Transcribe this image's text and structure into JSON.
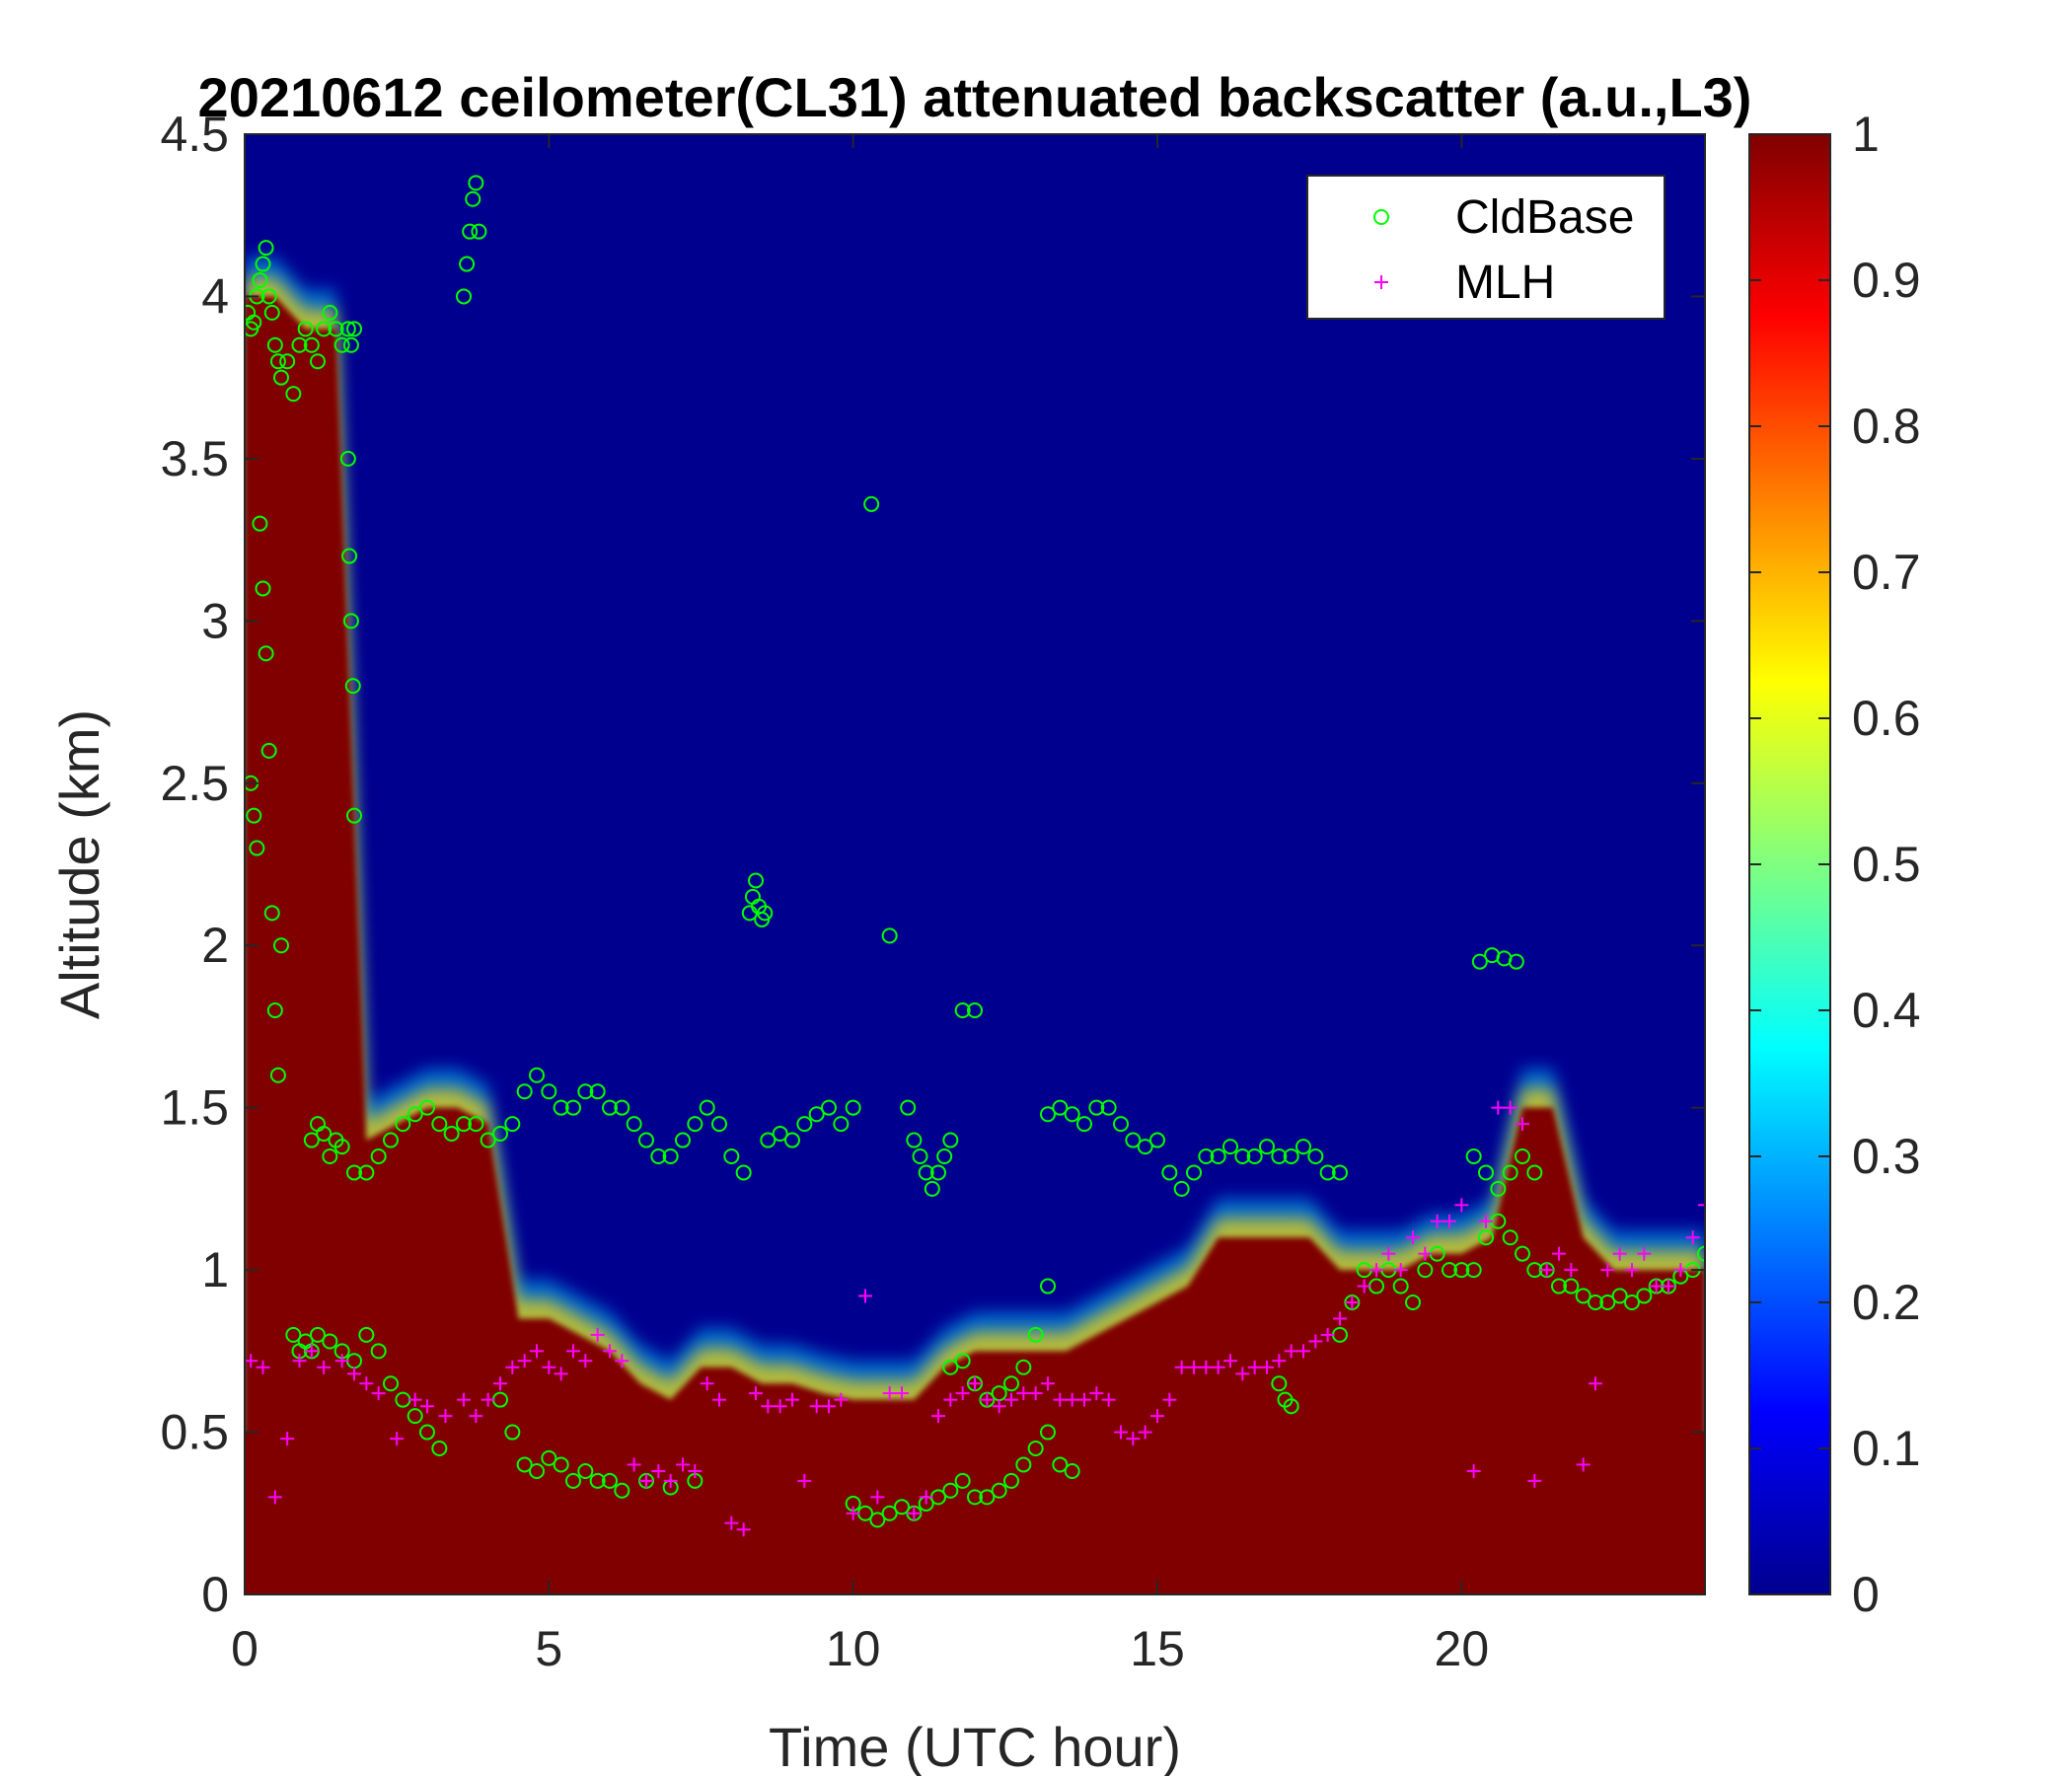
{
  "chart_data": {
    "type": "heatmap",
    "title": "20210612 ceilometer(CL31) attenuated backscatter (a.u.,L3)",
    "xlabel": "Time (UTC hour)",
    "ylabel": "Altitude (km)",
    "xlim": [
      0,
      24
    ],
    "ylim": [
      0,
      4.5
    ],
    "xticks": [
      0,
      5,
      10,
      15,
      20
    ],
    "xtick_labels": [
      "0",
      "5",
      "10",
      "15",
      "20"
    ],
    "yticks": [
      0,
      0.5,
      1,
      1.5,
      2,
      2.5,
      3,
      3.5,
      4,
      4.5
    ],
    "ytick_labels": [
      "0",
      "0.5",
      "1",
      "1.5",
      "2",
      "2.5",
      "3",
      "3.5",
      "4",
      "4.5"
    ],
    "colorbar": {
      "colormap": "jet",
      "range": [
        0,
        1
      ],
      "ticks": [
        0,
        0.1,
        0.2,
        0.3,
        0.4,
        0.5,
        0.6,
        0.7,
        0.8,
        0.9,
        1
      ],
      "tick_labels": [
        "0",
        "0.1",
        "0.2",
        "0.3",
        "0.4",
        "0.5",
        "0.6",
        "0.7",
        "0.8",
        "0.9",
        "1"
      ],
      "location": "right"
    },
    "legend": {
      "location": "top-right",
      "entries": [
        {
          "name": "CldBase",
          "marker": "circle",
          "color": "#00ff00"
        },
        {
          "name": "MLH",
          "marker": "plus",
          "color": "#ff00ff"
        }
      ]
    },
    "background_color": "#00008f",
    "saturated_color": "#800000",
    "layer_profile": {
      "note_free": true,
      "x": [
        0,
        0.5,
        1,
        1.5,
        2,
        2.5,
        3,
        3.5,
        4,
        4.5,
        5,
        5.5,
        6,
        6.5,
        7,
        7.5,
        8,
        8.5,
        9,
        9.5,
        10,
        10.5,
        11,
        11.5,
        12,
        12.5,
        13,
        13.5,
        14,
        14.5,
        15,
        15.5,
        16,
        16.5,
        17,
        17.5,
        18,
        18.5,
        19,
        19.5,
        20,
        20.5,
        21,
        21.5,
        22,
        22.5,
        23,
        23.5,
        24
      ],
      "dense_top": [
        4.0,
        4.0,
        3.9,
        3.9,
        1.4,
        1.45,
        1.5,
        1.5,
        1.45,
        0.85,
        0.85,
        0.8,
        0.75,
        0.65,
        0.6,
        0.7,
        0.7,
        0.65,
        0.65,
        0.62,
        0.6,
        0.6,
        0.6,
        0.7,
        0.75,
        0.75,
        0.75,
        0.75,
        0.8,
        0.85,
        0.9,
        0.95,
        1.1,
        1.1,
        1.1,
        1.1,
        1.0,
        1.0,
        1.0,
        1.05,
        1.05,
        1.1,
        1.5,
        1.5,
        1.1,
        1.0,
        1.0,
        1.0,
        1.0
      ]
    },
    "series": [
      {
        "name": "CldBase",
        "marker": "circle",
        "color": "#00ff00",
        "x": [
          0.05,
          0.1,
          0.15,
          0.2,
          0.25,
          0.3,
          0.35,
          0.4,
          0.45,
          0.5,
          0.55,
          0.6,
          0.7,
          0.8,
          0.9,
          1.0,
          1.1,
          1.2,
          1.3,
          1.4,
          1.5,
          1.6,
          1.7,
          1.75,
          1.8,
          0.1,
          0.15,
          0.2,
          0.25,
          0.3,
          0.35,
          0.4,
          0.45,
          0.5,
          0.55,
          0.6,
          1.7,
          1.72,
          1.75,
          1.78,
          1.8,
          0.8,
          0.9,
          1.0,
          1.1,
          1.2,
          1.4,
          1.6,
          1.8,
          2.0,
          2.2,
          2.4,
          2.6,
          2.8,
          3.0,
          3.2,
          1.1,
          1.2,
          1.3,
          1.4,
          1.5,
          1.6,
          1.8,
          2.0,
          2.2,
          2.4,
          2.6,
          2.8,
          3.0,
          3.2,
          3.4,
          3.6,
          3.8,
          4.0,
          4.2,
          4.4,
          4.6,
          4.8,
          5.0,
          5.2,
          5.4,
          5.6,
          5.8,
          6.0,
          6.2,
          6.4,
          6.6,
          6.8,
          7.0,
          7.2,
          7.4,
          7.6,
          7.8,
          8.0,
          8.2,
          8.6,
          8.8,
          9.0,
          9.2,
          9.4,
          9.6,
          9.8,
          10.0,
          3.6,
          3.65,
          3.7,
          3.75,
          3.8,
          3.85,
          8.3,
          8.35,
          8.4,
          8.45,
          8.5,
          8.55,
          10.3,
          10.6,
          10.9,
          11.0,
          11.1,
          11.2,
          11.3,
          11.4,
          11.5,
          11.6,
          11.8,
          12.0,
          10.0,
          10.2,
          10.4,
          10.6,
          10.8,
          11.0,
          11.2,
          11.4,
          11.6,
          11.8,
          12.0,
          12.2,
          12.4,
          12.6,
          12.8,
          13.0,
          13.2,
          13.4,
          13.6,
          11.6,
          11.8,
          12.0,
          12.2,
          12.4,
          12.6,
          12.8,
          13.0,
          13.2,
          13.2,
          13.4,
          13.6,
          13.8,
          14.0,
          14.2,
          14.4,
          14.6,
          14.8,
          15.0,
          15.2,
          15.4,
          15.6,
          15.8,
          16.0,
          16.2,
          16.4,
          16.6,
          16.8,
          17.0,
          17.2,
          17.4,
          17.6,
          17.8,
          18.0,
          17.0,
          17.1,
          17.2,
          18.0,
          18.2,
          18.4,
          18.6,
          18.8,
          19.0,
          19.2,
          19.4,
          19.6,
          19.8,
          20.0,
          20.2,
          20.4,
          20.6,
          20.8,
          21.0,
          21.2,
          21.4,
          21.6,
          21.8,
          22.0,
          22.2,
          22.4,
          22.6,
          22.8,
          23.0,
          23.2,
          23.4,
          23.6,
          23.8,
          24.0,
          20.2,
          20.4,
          20.6,
          20.8,
          21.0,
          21.2,
          20.3,
          20.5,
          20.7,
          20.9,
          4.2,
          4.4,
          4.6,
          4.8,
          5.0,
          5.2,
          5.4,
          5.6,
          5.8,
          6.0,
          6.2,
          6.6,
          7.0,
          7.4
        ],
        "y": [
          3.95,
          3.9,
          3.92,
          4.0,
          4.05,
          4.1,
          4.15,
          4.0,
          3.95,
          3.85,
          3.8,
          3.75,
          3.8,
          3.7,
          3.85,
          3.9,
          3.85,
          3.8,
          3.9,
          3.95,
          3.9,
          3.85,
          3.9,
          3.85,
          3.9,
          2.5,
          2.4,
          2.3,
          3.3,
          3.1,
          2.9,
          2.6,
          2.1,
          1.8,
          1.6,
          2.0,
          3.5,
          3.2,
          3.0,
          2.8,
          2.4,
          0.8,
          0.75,
          0.78,
          0.75,
          0.8,
          0.78,
          0.75,
          0.72,
          0.8,
          0.75,
          0.65,
          0.6,
          0.55,
          0.5,
          0.45,
          1.4,
          1.45,
          1.42,
          1.35,
          1.4,
          1.38,
          1.3,
          1.3,
          1.35,
          1.4,
          1.45,
          1.48,
          1.5,
          1.45,
          1.42,
          1.45,
          1.45,
          1.4,
          1.42,
          1.45,
          1.55,
          1.6,
          1.55,
          1.5,
          1.5,
          1.55,
          1.55,
          1.5,
          1.5,
          1.45,
          1.4,
          1.35,
          1.35,
          1.4,
          1.45,
          1.5,
          1.45,
          1.35,
          1.3,
          1.4,
          1.42,
          1.4,
          1.45,
          1.48,
          1.5,
          1.45,
          1.5,
          4.0,
          4.1,
          4.2,
          4.3,
          4.35,
          4.2,
          2.1,
          2.15,
          2.2,
          2.12,
          2.08,
          2.1,
          3.36,
          2.03,
          1.5,
          1.4,
          1.35,
          1.3,
          1.25,
          1.3,
          1.35,
          1.4,
          1.8,
          1.8,
          0.28,
          0.25,
          0.23,
          0.25,
          0.27,
          0.25,
          0.28,
          0.3,
          0.32,
          0.35,
          0.3,
          0.3,
          0.32,
          0.35,
          0.4,
          0.45,
          0.5,
          0.4,
          0.38,
          0.7,
          0.72,
          0.65,
          0.6,
          0.62,
          0.65,
          0.7,
          0.8,
          0.95,
          1.48,
          1.5,
          1.48,
          1.45,
          1.5,
          1.5,
          1.45,
          1.4,
          1.38,
          1.4,
          1.3,
          1.25,
          1.3,
          1.35,
          1.35,
          1.38,
          1.35,
          1.35,
          1.38,
          1.35,
          1.35,
          1.38,
          1.35,
          1.3,
          1.3,
          0.65,
          0.6,
          0.58,
          0.8,
          0.9,
          1.0,
          0.95,
          1.0,
          0.95,
          0.9,
          1.0,
          1.05,
          1.0,
          1.0,
          1.0,
          1.1,
          1.15,
          1.1,
          1.05,
          1.0,
          1.0,
          0.95,
          0.95,
          0.92,
          0.9,
          0.9,
          0.92,
          0.9,
          0.92,
          0.95,
          0.95,
          0.98,
          1.0,
          1.05,
          1.35,
          1.3,
          1.25,
          1.3,
          1.35,
          1.3,
          1.95,
          1.97,
          1.96,
          1.95,
          0.6,
          0.5,
          0.4,
          0.38,
          0.42,
          0.4,
          0.35,
          0.38,
          0.35,
          0.35,
          0.32,
          0.35,
          0.33,
          0.35
        ]
      },
      {
        "name": "MLH",
        "marker": "plus",
        "color": "#ff00ff",
        "x": [
          0.1,
          0.3,
          0.5,
          0.7,
          0.9,
          1.1,
          1.3,
          1.6,
          1.8,
          2.0,
          2.2,
          2.5,
          2.8,
          3.0,
          3.3,
          3.6,
          3.8,
          4.0,
          4.2,
          4.4,
          4.6,
          4.8,
          5.0,
          5.2,
          5.4,
          5.6,
          5.8,
          6.0,
          6.2,
          6.4,
          6.6,
          6.8,
          7.0,
          7.2,
          7.4,
          7.6,
          7.8,
          8.0,
          8.2,
          8.4,
          8.6,
          8.8,
          9.0,
          9.2,
          9.4,
          9.6,
          9.8,
          10.0,
          10.2,
          10.4,
          10.6,
          10.8,
          11.0,
          11.2,
          11.4,
          11.6,
          11.8,
          12.0,
          12.2,
          12.4,
          12.6,
          12.8,
          13.0,
          13.2,
          13.4,
          13.6,
          13.8,
          14.0,
          14.2,
          14.4,
          14.6,
          14.8,
          15.0,
          15.2,
          15.4,
          15.6,
          15.8,
          16.0,
          16.2,
          16.4,
          16.6,
          16.8,
          17.0,
          17.2,
          17.4,
          17.6,
          17.8,
          18.0,
          18.2,
          18.4,
          18.6,
          18.8,
          19.0,
          19.2,
          19.4,
          19.6,
          19.8,
          20.0,
          20.2,
          20.4,
          20.6,
          20.8,
          21.0,
          21.2,
          21.4,
          21.6,
          21.8,
          22.0,
          22.2,
          22.4,
          22.6,
          22.8,
          23.0,
          23.2,
          23.4,
          23.6,
          23.8,
          24.0
        ],
        "y": [
          0.72,
          0.7,
          0.3,
          0.48,
          0.72,
          0.75,
          0.7,
          0.72,
          0.68,
          0.65,
          0.62,
          0.48,
          0.6,
          0.58,
          0.55,
          0.6,
          0.55,
          0.6,
          0.65,
          0.7,
          0.72,
          0.75,
          0.7,
          0.68,
          0.75,
          0.72,
          0.8,
          0.75,
          0.72,
          0.4,
          0.35,
          0.38,
          0.35,
          0.4,
          0.38,
          0.65,
          0.6,
          0.22,
          0.2,
          0.62,
          0.58,
          0.58,
          0.6,
          0.35,
          0.58,
          0.58,
          0.6,
          0.25,
          0.92,
          0.3,
          0.62,
          0.62,
          0.25,
          0.3,
          0.55,
          0.6,
          0.62,
          0.65,
          0.6,
          0.58,
          0.6,
          0.62,
          0.62,
          0.65,
          0.6,
          0.6,
          0.6,
          0.62,
          0.6,
          0.5,
          0.48,
          0.5,
          0.55,
          0.6,
          0.7,
          0.7,
          0.7,
          0.7,
          0.72,
          0.68,
          0.7,
          0.7,
          0.72,
          0.75,
          0.75,
          0.78,
          0.8,
          0.85,
          0.9,
          0.95,
          1.0,
          1.05,
          1.0,
          1.1,
          1.05,
          1.15,
          1.15,
          1.2,
          0.38,
          1.15,
          1.5,
          1.5,
          1.45,
          0.35,
          1.0,
          1.05,
          1.0,
          0.4,
          0.65,
          1.0,
          1.05,
          1.0,
          1.05,
          0.95,
          0.95,
          1.0,
          1.1,
          1.2
        ]
      }
    ]
  }
}
